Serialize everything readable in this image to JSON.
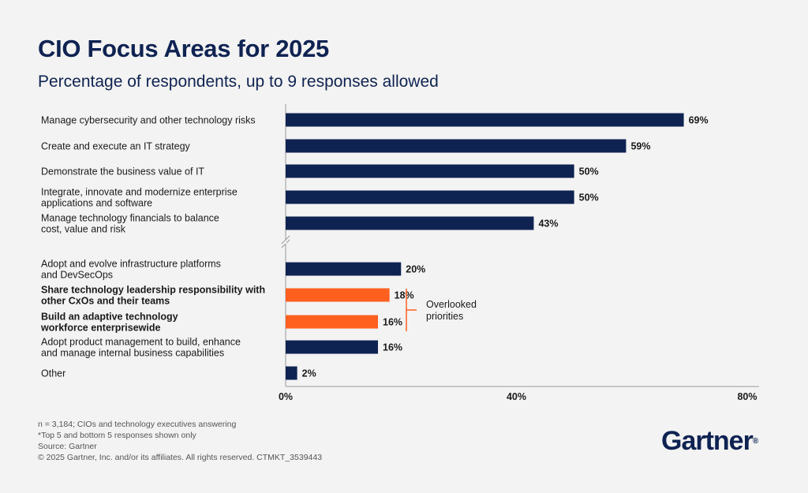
{
  "chart_data": {
    "type": "bar",
    "orientation": "horizontal",
    "title": "CIO Focus Areas for 2025",
    "subtitle": "Percentage of respondents, up to 9 responses allowed",
    "xlim": [
      0,
      80
    ],
    "x_ticks": [
      "0%",
      "40%",
      "80%"
    ],
    "grid": false,
    "axis_break_after_index": 4,
    "categories": [
      [
        "Manage cybersecurity and other technology risks"
      ],
      [
        "Create and execute an IT strategy"
      ],
      [
        "Demonstrate the business value of IT"
      ],
      [
        "Integrate, innovate and modernize enterprise",
        "applications and software"
      ],
      [
        "Manage technology financials to balance",
        "cost, value and risk"
      ],
      [
        "Adopt and evolve infrastructure platforms",
        "and DevSecOps"
      ],
      [
        "Share technology leadership responsibility with",
        "other CxOs and their teams"
      ],
      [
        "Build an adaptive technology",
        "workforce enterprisewide"
      ],
      [
        "Adopt product management to build, enhance",
        "and manage internal business capabilities"
      ],
      [
        "Other"
      ]
    ],
    "values": [
      69,
      59,
      50,
      50,
      43,
      20,
      18,
      16,
      16,
      2
    ],
    "value_labels": [
      "69%",
      "59%",
      "50%",
      "50%",
      "43%",
      "20%",
      "18%",
      "16%",
      "16%",
      "2%"
    ],
    "highlighted": [
      false,
      false,
      false,
      false,
      false,
      false,
      true,
      true,
      false,
      false
    ],
    "colors": {
      "default": "#0f2352",
      "highlight": "#ff5f1f"
    },
    "annotation": {
      "text": [
        "Overlooked",
        "priorities"
      ],
      "applies_to": [
        6,
        7
      ]
    }
  },
  "footnotes": [
    "n = 3,184; CIOs and technology executives answering",
    "*Top 5 and bottom 5 responses shown only",
    "Source: Gartner",
    "© 2025 Gartner, Inc. and/or its affiliates. All rights reserved. CTMKT_3539443"
  ],
  "logo": {
    "text": "Gartner",
    "mark": "®"
  }
}
